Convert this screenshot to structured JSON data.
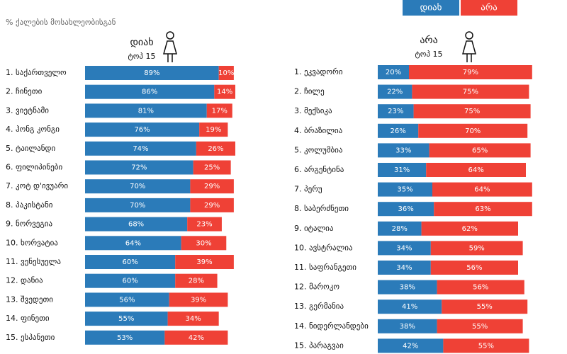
{
  "subtitle": "% ქალების მოსახლეობისგან",
  "chart_data": [
    {
      "type": "bar",
      "title": "დიახ",
      "subtitle": "ტოპ 15",
      "categories": [
        "1. საქართველო",
        "2. ჩინეთი",
        "3. ვიეტნამი",
        "4. ჰონგ კონგი",
        "5. ტაილანდი",
        "6. ფილიპინები",
        "7. კოტ დ'ივუარი",
        "8. პაკისტანი",
        "9. ნორვეგია",
        "10. ხორვატია",
        "11. ვენესუელა",
        "12. დანია",
        "13. შვედეთი",
        "14. ფინეთი",
        "15. ესპანეთი"
      ],
      "series": [
        {
          "name": "დიახ",
          "color": "#2b7bb9",
          "values": [
            89,
            86,
            81,
            76,
            74,
            72,
            70,
            70,
            68,
            64,
            60,
            60,
            56,
            55,
            53
          ],
          "value_labels": [
            "89%",
            "86%",
            "81%",
            "76%",
            "74%",
            "72%",
            "70%",
            "70%",
            "68%",
            "64%",
            "60%",
            "60%",
            "56%",
            "55%",
            "53%"
          ]
        },
        {
          "name": "არა",
          "color": "#ef4136",
          "values": [
            10,
            14,
            17,
            19,
            26,
            25,
            29,
            29,
            23,
            30,
            39,
            28,
            39,
            34,
            42
          ],
          "value_labels": [
            "10%",
            "14%",
            "17%",
            "19%",
            "26%",
            "25%",
            "29%",
            "29%",
            "23%",
            "30%",
            "39%",
            "28%",
            "39%",
            "34%",
            "42%"
          ]
        }
      ]
    },
    {
      "type": "bar",
      "title": "არა",
      "subtitle": "ტოპ 15",
      "categories": [
        "1. ეკვადორი",
        "2. ჩილე",
        "3. მექსიკა",
        "4. ბრაზილია",
        "5. კოლუმბია",
        "6. არგენტინა",
        "7. პერუ",
        "8. საბერძნეთი",
        "9. იტალია",
        "10. ავსტრალია",
        "11. საფრანგეთი",
        "12. მაროკო",
        "13. გერმანია",
        "14. ნიდერლანდები",
        "15. პარაგვაი"
      ],
      "series": [
        {
          "name": "დიახ",
          "color": "#2b7bb9",
          "values": [
            20,
            22,
            23,
            26,
            33,
            31,
            35,
            36,
            28,
            34,
            34,
            38,
            41,
            38,
            42
          ],
          "value_labels": [
            "20%",
            "22%",
            "23%",
            "26%",
            "33%",
            "31%",
            "35%",
            "36%",
            "28%",
            "34%",
            "34%",
            "38%",
            "41%",
            "38%",
            "42%"
          ]
        },
        {
          "name": "არა",
          "color": "#ef4136",
          "values": [
            79,
            75,
            75,
            70,
            65,
            64,
            64,
            63,
            62,
            59,
            56,
            56,
            55,
            55,
            55
          ],
          "value_labels": [
            "79%",
            "75%",
            "75%",
            "70%",
            "65%",
            "64%",
            "64%",
            "63%",
            "62%",
            "59%",
            "56%",
            "56%",
            "55%",
            "55%",
            "55%"
          ]
        }
      ]
    }
  ]
}
